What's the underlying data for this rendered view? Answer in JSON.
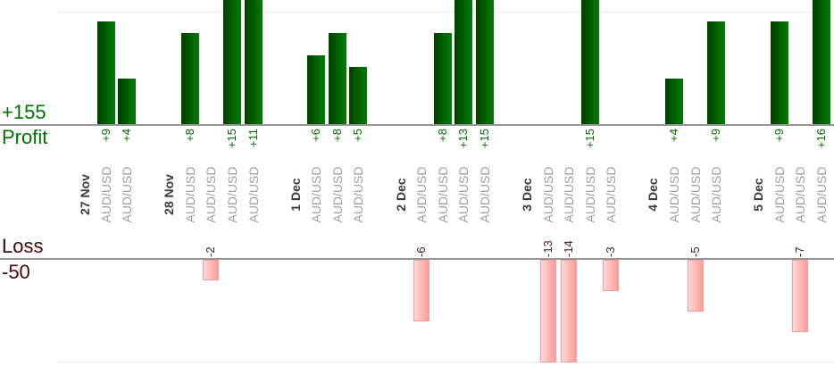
{
  "labels": {
    "profit_total": "+155",
    "profit": "Profit",
    "loss": "Loss",
    "loss_total": "-50"
  },
  "colors": {
    "profit_text": "#007000",
    "loss_text": "#400808",
    "loss_value_text": "#4a1a1a",
    "date_text": "#3a3a3a",
    "symbol_text": "#9e9e9e",
    "axis_line": "#949494",
    "grid_line": "#e8e8e8",
    "bar_profit_dark": "#003f00",
    "bar_profit_light": "#007e00",
    "bar_loss_light": "#ffd9d4",
    "bar_loss_dark": "#fa9c9c",
    "bar_loss_border": "#ee9c9c"
  },
  "chart_data": {
    "type": "bar",
    "title": "",
    "ylabel_top": "Profit",
    "ylabel_bottom": "Loss",
    "profit_total_label": "+155",
    "loss_total_label": "-50",
    "profit_total": 155,
    "loss_total": -50,
    "gridlines": [
      10,
      -10
    ],
    "legend": "none",
    "grid": "faint horizontal at +10 and -10, bars clipped at panel edges",
    "groups": [
      {
        "date": "27 Nov",
        "trades": [
          {
            "symbol": "AUD/USD",
            "value": 9,
            "label": "+9"
          },
          {
            "symbol": "AUD/USD",
            "value": 4,
            "label": "+4"
          }
        ]
      },
      {
        "date": "28 Nov",
        "trades": [
          {
            "symbol": "AUD/USD",
            "value": 8,
            "label": "+8"
          },
          {
            "symbol": "AUD/USD",
            "value": -2,
            "label": "-2"
          },
          {
            "symbol": "AUD/USD",
            "value": 15,
            "label": "+15"
          },
          {
            "symbol": "AUD/USD",
            "value": 11,
            "label": "+11"
          }
        ]
      },
      {
        "date": "1 Dec",
        "trades": [
          {
            "symbol": "AUD/USD",
            "value": 6,
            "label": "+6"
          },
          {
            "symbol": "AUD/USD",
            "value": 8,
            "label": "+8"
          },
          {
            "symbol": "AUD/USD",
            "value": 5,
            "label": "+5"
          }
        ]
      },
      {
        "date": "2 Dec",
        "trades": [
          {
            "symbol": "AUD/USD",
            "value": -6,
            "label": "-6"
          },
          {
            "symbol": "AUD/USD",
            "value": 8,
            "label": "+8"
          },
          {
            "symbol": "AUD/USD",
            "value": 13,
            "label": "+13"
          },
          {
            "symbol": "AUD/USD",
            "value": 15,
            "label": "+15"
          }
        ]
      },
      {
        "date": "3 Dec",
        "trades": [
          {
            "symbol": "AUD/USD",
            "value": -13,
            "label": "-13"
          },
          {
            "symbol": "AUD/USD",
            "value": -14,
            "label": "-14"
          },
          {
            "symbol": "AUD/USD",
            "value": 15,
            "label": "+15"
          },
          {
            "symbol": "AUD/USD",
            "value": -3,
            "label": "-3"
          }
        ]
      },
      {
        "date": "4 Dec",
        "trades": [
          {
            "symbol": "AUD/USD",
            "value": 4,
            "label": "+4"
          },
          {
            "symbol": "AUD/USD",
            "value": -5,
            "label": "-5"
          },
          {
            "symbol": "AUD/USD",
            "value": 9,
            "label": "+9"
          }
        ]
      },
      {
        "date": "5 Dec",
        "trades": [
          {
            "symbol": "AUD/USD",
            "value": 9,
            "label": "+9"
          },
          {
            "symbol": "AUD/USD",
            "value": -7,
            "label": "-7"
          },
          {
            "symbol": "AUD/USD",
            "value": 16,
            "label": "+16"
          }
        ]
      }
    ]
  }
}
